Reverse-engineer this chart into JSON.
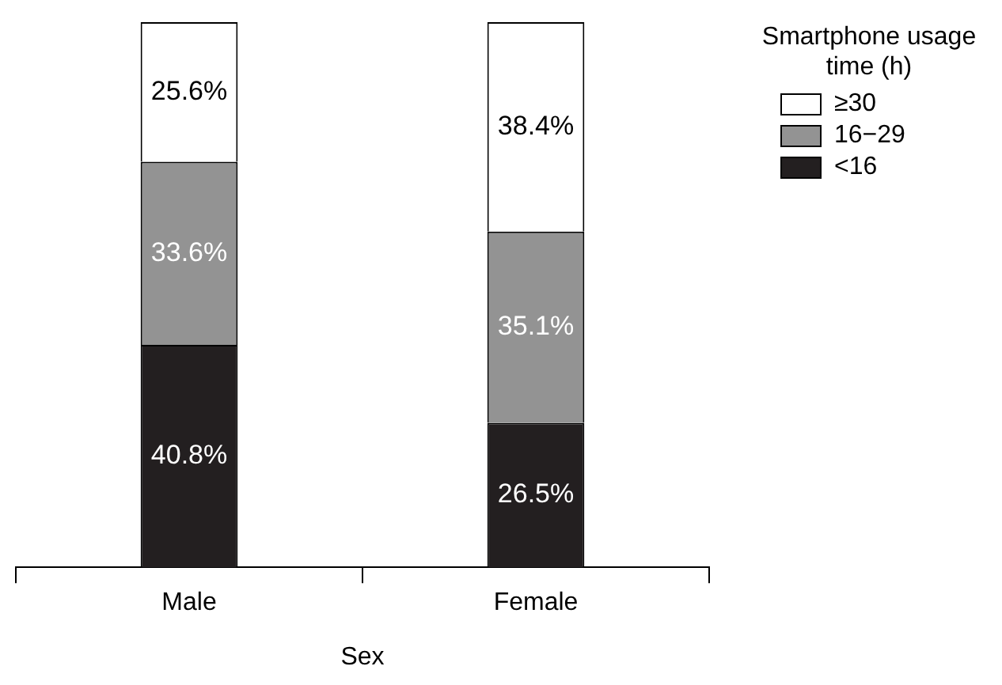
{
  "chart_data": {
    "type": "bar",
    "stacked": true,
    "xlabel": "Sex",
    "legend_title": "Smartphone usage time (h)",
    "legend": "top right",
    "categories": [
      "Male",
      "Female"
    ],
    "tick_labels": "x",
    "series": [
      {
        "name": "<16",
        "color": "#231f20",
        "values": [
          40.8,
          26.5
        ],
        "value_labels": [
          "40.8%",
          "26.5%"
        ]
      },
      {
        "name": "16−29",
        "color": "#939393",
        "values": [
          33.6,
          35.1
        ],
        "value_labels": [
          "33.6%",
          "35.1%"
        ]
      },
      {
        "name": "≥30",
        "color": "#ffffff",
        "values": [
          25.6,
          38.4
        ],
        "value_labels": [
          "25.6%",
          "38.4%"
        ]
      }
    ]
  }
}
